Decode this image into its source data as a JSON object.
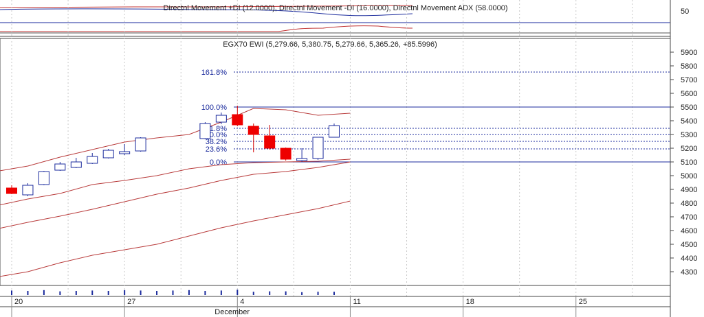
{
  "indicator_panel": {
    "title": "Directnl Movement +DI (12.0000), Directnl Movement -DI (16.0000), Directnl Movement ADX (58.0000)",
    "y_tick": "50"
  },
  "chart_data": {
    "type": "candlestick",
    "title": "EGX70 EWI (5,279.66, 5,380.75, 5,279.66, 5,365.26, +85.5996)",
    "ylim": [
      4200,
      6000
    ],
    "y_ticks": [
      4300,
      4400,
      4500,
      4600,
      4700,
      4800,
      4900,
      5000,
      5100,
      5200,
      5300,
      5400,
      5500,
      5600,
      5700,
      5800,
      5900
    ],
    "x_tick_labels": [
      {
        "label": "20",
        "day": 20
      },
      {
        "label": "27",
        "day": 27
      },
      {
        "label": "4",
        "day": 34
      },
      {
        "label": "11",
        "day": 41
      },
      {
        "label": "18",
        "day": 48
      },
      {
        "label": "25",
        "day": 55
      }
    ],
    "month_label": {
      "label": "December",
      "day": 34
    },
    "candles": [
      {
        "day": 20,
        "open": 4910,
        "high": 4930,
        "low": 4865,
        "close": 4870,
        "dir": "down"
      },
      {
        "day": 21,
        "open": 4860,
        "high": 4945,
        "low": 4850,
        "close": 4930,
        "dir": "up"
      },
      {
        "day": 22,
        "open": 4935,
        "high": 5035,
        "low": 4930,
        "close": 5030,
        "dir": "up"
      },
      {
        "day": 23,
        "open": 5040,
        "high": 5100,
        "low": 5035,
        "close": 5085,
        "dir": "up"
      },
      {
        "day": 24,
        "open": 5060,
        "high": 5130,
        "low": 5055,
        "close": 5100,
        "dir": "up"
      },
      {
        "day": 25,
        "open": 5090,
        "high": 5165,
        "low": 5085,
        "close": 5140,
        "dir": "up"
      },
      {
        "day": 26,
        "open": 5130,
        "high": 5195,
        "low": 5125,
        "close": 5185,
        "dir": "up"
      },
      {
        "day": 27,
        "open": 5160,
        "high": 5230,
        "low": 5150,
        "close": 5175,
        "dir": "up"
      },
      {
        "day": 28,
        "open": 5180,
        "high": 5280,
        "low": 5175,
        "close": 5275,
        "dir": "up"
      },
      {
        "day": 32,
        "open": 5270,
        "high": 5390,
        "low": 5265,
        "close": 5380,
        "dir": "up"
      },
      {
        "day": 33,
        "open": 5390,
        "high": 5460,
        "low": 5375,
        "close": 5440,
        "dir": "up"
      },
      {
        "day": 34,
        "open": 5445,
        "high": 5510,
        "low": 5360,
        "close": 5370,
        "dir": "down"
      },
      {
        "day": 35,
        "open": 5360,
        "high": 5380,
        "low": 5170,
        "close": 5300,
        "dir": "down"
      },
      {
        "day": 36,
        "open": 5290,
        "high": 5370,
        "low": 5190,
        "close": 5200,
        "dir": "down"
      },
      {
        "day": 37,
        "open": 5200,
        "high": 5205,
        "low": 5110,
        "close": 5120,
        "dir": "down"
      },
      {
        "day": 38,
        "open": 5110,
        "high": 5200,
        "low": 5100,
        "close": 5125,
        "dir": "up"
      },
      {
        "day": 39,
        "open": 5125,
        "high": 5280,
        "low": 5115,
        "close": 5280,
        "dir": "up"
      },
      {
        "day": 40,
        "open": 5280,
        "high": 5380,
        "low": 5280,
        "close": 5365,
        "dir": "up"
      }
    ],
    "fibonacci": {
      "levels": [
        {
          "label": "161.8%",
          "value": 5755,
          "style": "dashed"
        },
        {
          "label": "100.0%",
          "value": 5500,
          "style": "solid"
        },
        {
          "label": "61.8%",
          "value": 5345,
          "style": "dashed"
        },
        {
          "label": "50.0%",
          "value": 5300,
          "style": "dashed"
        },
        {
          "label": "38.2%",
          "value": 5250,
          "style": "dashed"
        },
        {
          "label": "23.6%",
          "value": 5195,
          "style": "dashed"
        },
        {
          "label": "0.0%",
          "value": 5100,
          "style": "solid"
        }
      ]
    },
    "bands": {
      "upper": [
        [
          17,
          5010
        ],
        [
          19,
          5030
        ],
        [
          21,
          5070
        ],
        [
          23,
          5135
        ],
        [
          25,
          5190
        ],
        [
          27,
          5245
        ],
        [
          29,
          5275
        ],
        [
          31,
          5300
        ],
        [
          33,
          5390
        ],
        [
          35,
          5490
        ],
        [
          37,
          5480
        ],
        [
          39,
          5440
        ],
        [
          41,
          5455
        ]
      ],
      "middle": [
        [
          17,
          4730
        ],
        [
          19,
          4780
        ],
        [
          21,
          4830
        ],
        [
          23,
          4870
        ],
        [
          25,
          4935
        ],
        [
          27,
          4965
        ],
        [
          29,
          5000
        ],
        [
          31,
          5050
        ],
        [
          33,
          5080
        ],
        [
          35,
          5095
        ],
        [
          37,
          5100
        ],
        [
          39,
          5105
        ],
        [
          41,
          5120
        ]
      ],
      "lower": [
        [
          17,
          4565
        ],
        [
          19,
          4610
        ],
        [
          21,
          4660
        ],
        [
          23,
          4705
        ],
        [
          25,
          4755
        ],
        [
          27,
          4810
        ],
        [
          29,
          4865
        ],
        [
          31,
          4910
        ],
        [
          33,
          4965
        ],
        [
          35,
          5010
        ],
        [
          37,
          5030
        ],
        [
          39,
          5060
        ],
        [
          41,
          5100
        ]
      ],
      "lower2": [
        [
          17,
          4225
        ],
        [
          19,
          4260
        ],
        [
          21,
          4300
        ],
        [
          23,
          4365
        ],
        [
          25,
          4420
        ],
        [
          27,
          4460
        ],
        [
          29,
          4500
        ],
        [
          31,
          4560
        ],
        [
          33,
          4620
        ],
        [
          35,
          4670
        ],
        [
          37,
          4715
        ],
        [
          39,
          4760
        ],
        [
          41,
          4815
        ]
      ]
    },
    "volume_days": [
      20,
      21,
      22,
      23,
      24,
      25,
      26,
      27,
      28,
      29,
      30,
      31,
      32,
      33,
      34,
      35,
      36,
      37,
      38,
      39,
      40
    ],
    "volume_heights": [
      0.55,
      0.5,
      0.6,
      0.45,
      0.5,
      0.55,
      0.5,
      0.6,
      0.55,
      0.5,
      0.55,
      0.6,
      0.5,
      0.55,
      0.65,
      0.4,
      0.45,
      0.45,
      0.35,
      0.4,
      0.4
    ]
  }
}
